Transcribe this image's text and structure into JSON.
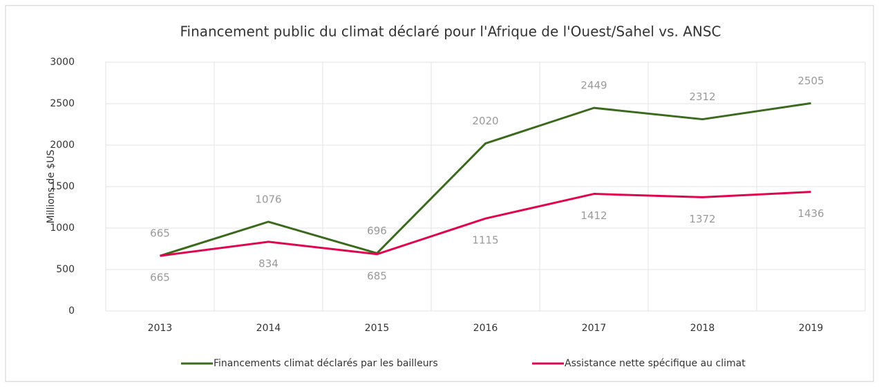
{
  "chart_data": {
    "type": "line",
    "title": "Financement public du climat déclaré pour l'Afrique de l'Ouest/Sahel vs. ANSC",
    "y_label": "Millions de $US",
    "categories": [
      "2013",
      "2014",
      "2015",
      "2016",
      "2017",
      "2018",
      "2019"
    ],
    "series": [
      {
        "name": "Financements climat déclarés par les bailleurs",
        "color": "#3b6a1d",
        "values": [
          665,
          1076,
          696,
          2020,
          2449,
          2312,
          2505
        ]
      },
      {
        "name": "Assistance nette spécifique au climat",
        "color": "#e0054f",
        "values": [
          665,
          834,
          685,
          1115,
          1412,
          1372,
          1436
        ]
      }
    ],
    "ylim": [
      0,
      3000
    ],
    "yticks": [
      0,
      500,
      1000,
      1500,
      2000,
      2500,
      3000
    ],
    "grid": true,
    "legend": "bottom",
    "data_labels": true
  }
}
